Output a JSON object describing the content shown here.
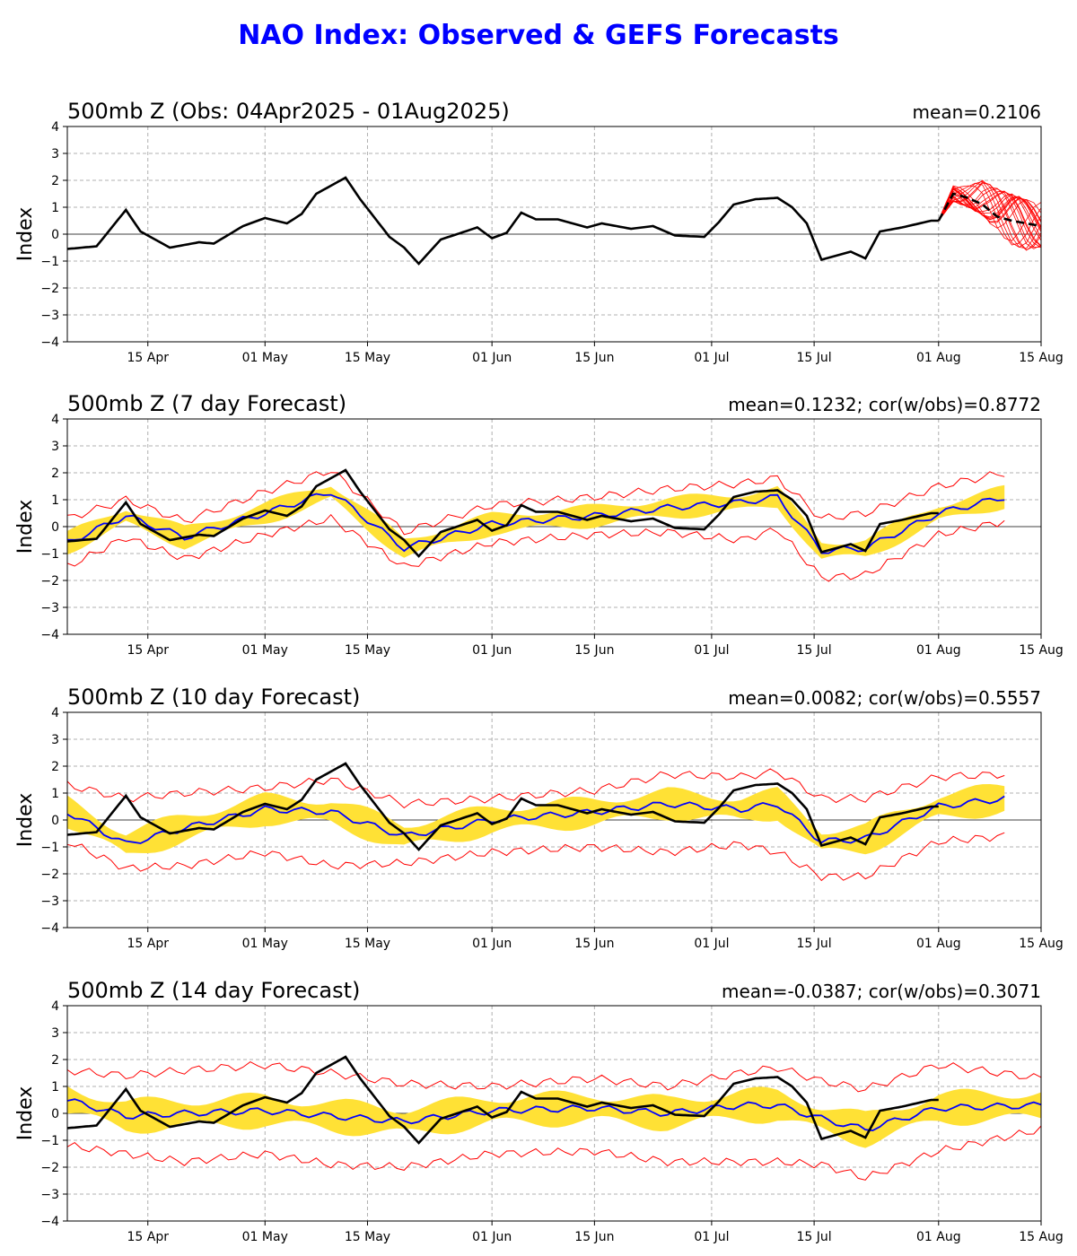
{
  "title": "NAO Index: Observed & GEFS Forecasts",
  "colors": {
    "title": "#0000ff",
    "observed": "#000000",
    "ensemble_mean": "#0000ff",
    "spread_band": "#ffe135",
    "extremes": "#ff0000",
    "grid": "#b0b0b0"
  },
  "x_ticks": [
    "15 Apr",
    "01 May",
    "15 May",
    "01 Jun",
    "15 Jun",
    "01 Jul",
    "15 Jul",
    "01 Aug",
    "15 Aug"
  ],
  "y_ticks": [
    "4",
    "3",
    "2",
    "1",
    "0",
    "−1",
    "−2",
    "−3",
    "−4"
  ],
  "panels": [
    {
      "title": "500mb Z (Obs: 04Apr2025 - 01Aug2025)",
      "stats": "mean=0.2106",
      "ylabel": "Index"
    },
    {
      "title": "500mb Z (7 day Forecast)",
      "stats": "mean=0.1232; cor(w/obs)=0.8772",
      "ylabel": "Index"
    },
    {
      "title": "500mb Z (10 day Forecast)",
      "stats": "mean=0.0082; cor(w/obs)=0.5557",
      "ylabel": "Index"
    },
    {
      "title": "500mb Z (14 day Forecast)",
      "stats": "mean=-0.0387; cor(w/obs)=0.3071",
      "ylabel": "Index"
    }
  ],
  "chart_data": [
    {
      "type": "line",
      "x_start": "2025-04-04",
      "x_range": [
        "2025-04-04",
        "2025-08-15"
      ],
      "ylim": [
        -4,
        4
      ],
      "grid": true,
      "observed_dates": [
        "2025-04-04",
        "2025-04-08",
        "2025-04-12",
        "2025-04-14",
        "2025-04-18",
        "2025-04-22",
        "2025-04-24",
        "2025-04-28",
        "2025-05-01",
        "2025-05-04",
        "2025-05-06",
        "2025-05-08",
        "2025-05-12",
        "2025-05-14",
        "2025-05-18",
        "2025-05-20",
        "2025-05-22",
        "2025-05-25",
        "2025-05-30",
        "2025-06-01",
        "2025-06-03",
        "2025-06-05",
        "2025-06-07",
        "2025-06-10",
        "2025-06-14",
        "2025-06-16",
        "2025-06-20",
        "2025-06-23",
        "2025-06-26",
        "2025-06-30",
        "2025-07-02",
        "2025-07-04",
        "2025-07-07",
        "2025-07-10",
        "2025-07-12",
        "2025-07-14",
        "2025-07-16",
        "2025-07-20",
        "2025-07-22",
        "2025-07-24",
        "2025-07-27",
        "2025-07-31",
        "2025-08-01"
      ],
      "observed": [
        -0.55,
        -0.45,
        0.9,
        0.1,
        -0.5,
        -0.3,
        -0.35,
        0.3,
        0.6,
        0.4,
        0.75,
        1.5,
        2.1,
        1.3,
        -0.1,
        -0.5,
        -1.1,
        -0.2,
        0.25,
        -0.15,
        0.05,
        0.8,
        0.55,
        0.55,
        0.25,
        0.4,
        0.2,
        0.3,
        -0.05,
        -0.1,
        0.45,
        1.1,
        1.3,
        1.35,
        1.0,
        0.4,
        -0.95,
        -0.65,
        -0.9,
        0.1,
        0.25,
        0.5,
        0.5
      ],
      "members_dates": [
        "2025-08-01",
        "2025-08-03",
        "2025-08-05",
        "2025-08-07",
        "2025-08-09",
        "2025-08-11",
        "2025-08-13",
        "2025-08-15"
      ],
      "members_mean": [
        0.5,
        1.5,
        1.35,
        1.1,
        0.65,
        0.5,
        0.4,
        0.3
      ],
      "members_range": [
        [
          0.5,
          0.5
        ],
        [
          1.2,
          1.8
        ],
        [
          1.0,
          1.8
        ],
        [
          0.7,
          2.0
        ],
        [
          0.1,
          1.7
        ],
        [
          -0.4,
          1.5
        ],
        [
          -0.6,
          1.3
        ],
        [
          -0.5,
          1.2
        ]
      ]
    },
    {
      "type": "area",
      "lead_days": 7,
      "ylim": [
        -4,
        4
      ],
      "observed_ref": "panel 1 observed",
      "mean_dates": [
        "2025-04-04",
        "2025-04-12",
        "2025-04-20",
        "2025-05-01",
        "2025-05-10",
        "2025-05-20",
        "2025-06-01",
        "2025-06-15",
        "2025-06-25",
        "2025-07-05",
        "2025-07-10",
        "2025-07-16",
        "2025-07-22",
        "2025-08-01",
        "2025-08-10"
      ],
      "ens_mean": [
        -0.6,
        0.4,
        -0.4,
        0.5,
        1.3,
        -0.8,
        0.1,
        0.4,
        0.7,
        0.9,
        1.1,
        -0.9,
        -0.8,
        0.5,
        1.1
      ],
      "spread_halfwidth": 0.4,
      "ens_max": [
        0.3,
        1.0,
        0.2,
        1.3,
        2.1,
        -0.2,
        0.8,
        1.1,
        1.4,
        1.6,
        1.8,
        0.3,
        0.5,
        1.5,
        2.0
      ],
      "ens_min": [
        -1.5,
        -0.4,
        -1.2,
        -0.3,
        0.3,
        -1.5,
        -0.6,
        -0.3,
        -0.2,
        -0.5,
        -0.1,
        -1.9,
        -1.8,
        -0.3,
        0.2
      ]
    },
    {
      "type": "area",
      "lead_days": 10,
      "ylim": [
        -4,
        4
      ],
      "observed_ref": "panel 1 observed",
      "mean_dates": [
        "2025-04-04",
        "2025-04-12",
        "2025-04-20",
        "2025-05-01",
        "2025-05-10",
        "2025-05-20",
        "2025-06-01",
        "2025-06-15",
        "2025-06-25",
        "2025-07-05",
        "2025-07-10",
        "2025-07-16",
        "2025-07-22",
        "2025-08-01",
        "2025-08-10"
      ],
      "ens_mean": [
        0.3,
        -0.9,
        -0.3,
        0.4,
        0.3,
        -0.6,
        0.0,
        0.3,
        0.6,
        0.4,
        0.6,
        -0.8,
        -0.7,
        0.5,
        0.8
      ],
      "spread_halfwidth": 0.55,
      "ens_max": [
        1.3,
        0.8,
        1.0,
        1.2,
        1.5,
        0.6,
        0.8,
        1.1,
        1.7,
        1.6,
        1.8,
        0.8,
        0.8,
        1.6,
        1.7
      ],
      "ens_min": [
        -0.8,
        -1.8,
        -1.7,
        -1.2,
        -1.7,
        -1.6,
        -1.2,
        -1.0,
        -1.2,
        -0.9,
        -1.2,
        -2.1,
        -2.1,
        -0.8,
        -0.6
      ]
    },
    {
      "type": "area",
      "lead_days": 14,
      "ylim": [
        -4,
        4
      ],
      "observed_ref": "panel 1 observed",
      "mean_dates": [
        "2025-04-04",
        "2025-04-12",
        "2025-04-20",
        "2025-05-01",
        "2025-05-10",
        "2025-05-20",
        "2025-06-01",
        "2025-06-15",
        "2025-06-25",
        "2025-07-05",
        "2025-07-10",
        "2025-07-16",
        "2025-07-22",
        "2025-08-01",
        "2025-08-15"
      ],
      "ens_mean": [
        0.5,
        -0.1,
        0.0,
        0.1,
        -0.1,
        -0.3,
        0.1,
        0.2,
        0.0,
        0.3,
        0.3,
        -0.2,
        -0.6,
        0.2,
        0.3
      ],
      "spread_halfwidth": 0.6,
      "ens_max": [
        1.6,
        1.4,
        1.6,
        1.8,
        1.5,
        1.1,
        1.0,
        1.3,
        1.0,
        1.5,
        1.7,
        1.2,
        0.9,
        1.8,
        1.3
      ],
      "ens_min": [
        -1.2,
        -1.5,
        -1.8,
        -1.5,
        -1.9,
        -2.0,
        -1.5,
        -1.4,
        -1.8,
        -1.8,
        -1.8,
        -1.9,
        -2.4,
        -1.4,
        -0.6
      ]
    }
  ]
}
